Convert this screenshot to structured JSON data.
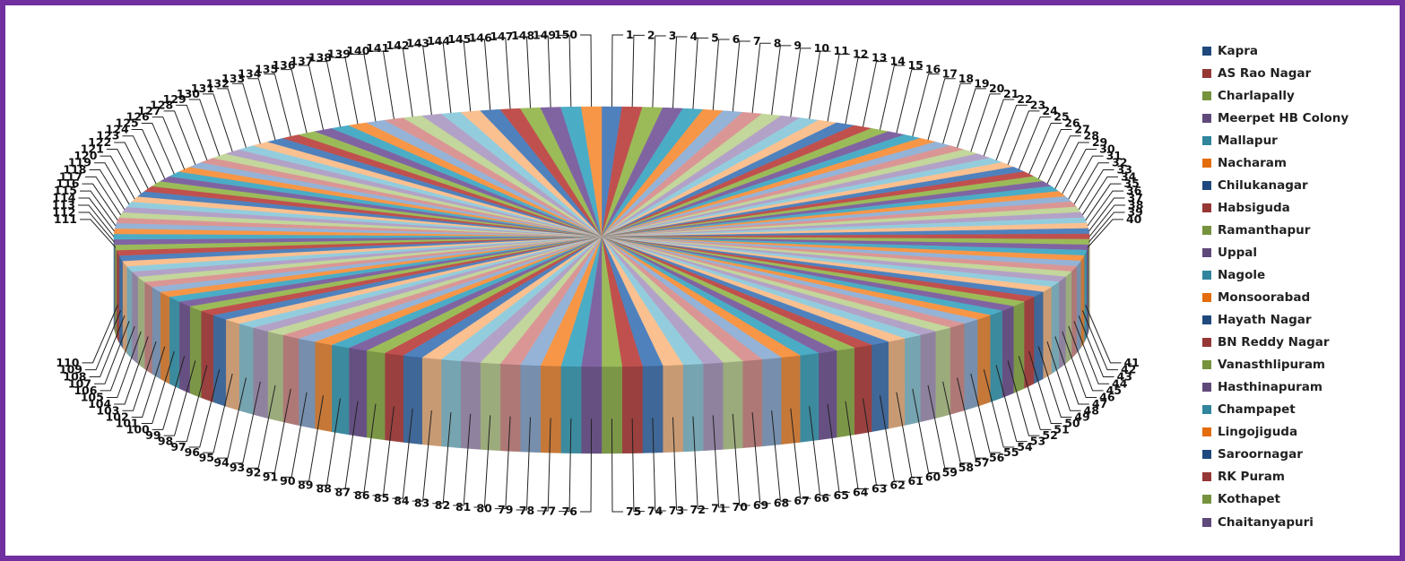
{
  "colors": {
    "frame": "#7030a0",
    "background": "#ffffff",
    "palette": [
      "#4f81bd",
      "#c0504d",
      "#9bbb59",
      "#8064a2",
      "#4bacc6",
      "#f79646",
      "#95b3d7",
      "#da9694",
      "#c3d69b",
      "#b3a2c7",
      "#93cddd",
      "#fac090"
    ],
    "legend_palette": [
      "#1f497d",
      "#953735",
      "#76923c",
      "#5f497a",
      "#31859c",
      "#e46c0a",
      "#1f497d",
      "#953735",
      "#76923c",
      "#5f497a",
      "#31859c",
      "#e46c0a",
      "#1f497d",
      "#953735",
      "#76923c",
      "#5f497a",
      "#31859c",
      "#e46c0a",
      "#1f497d",
      "#953735",
      "#76923c",
      "#5f497a"
    ]
  },
  "chart_data": {
    "type": "pie",
    "style": "3d exploded-free pie with leader-line labels",
    "slice_count": 150,
    "values": "150 equal slices (each ~0.667%)",
    "slice_labels": [
      "1",
      "2",
      "3",
      "4",
      "5",
      "6",
      "7",
      "8",
      "9",
      "10",
      "11",
      "12",
      "13",
      "14",
      "15",
      "16",
      "17",
      "18",
      "19",
      "20",
      "21",
      "22",
      "23",
      "24",
      "25",
      "26",
      "27",
      "28",
      "29",
      "30",
      "31",
      "32",
      "33",
      "34",
      "35",
      "36",
      "37",
      "38",
      "39",
      "40",
      "41",
      "42",
      "43",
      "44",
      "45",
      "46",
      "47",
      "48",
      "49",
      "50",
      "51",
      "52",
      "53",
      "54",
      "55",
      "56",
      "57",
      "58",
      "59",
      "60",
      "61",
      "62",
      "63",
      "64",
      "65",
      "66",
      "67",
      "68",
      "69",
      "70",
      "71",
      "72",
      "73",
      "74",
      "75",
      "76",
      "77",
      "78",
      "79",
      "80",
      "81",
      "82",
      "83",
      "84",
      "85",
      "86",
      "87",
      "88",
      "89",
      "90",
      "91",
      "92",
      "93",
      "94",
      "95",
      "96",
      "97",
      "98",
      "99",
      "100",
      "101",
      "102",
      "103",
      "104",
      "105",
      "106",
      "107",
      "108",
      "109",
      "110",
      "111",
      "112",
      "113",
      "114",
      "115",
      "116",
      "117",
      "118",
      "119",
      "120",
      "121",
      "122",
      "123",
      "124",
      "125",
      "126",
      "127",
      "128",
      "129",
      "130",
      "131",
      "132",
      "133",
      "134",
      "135",
      "136",
      "137",
      "138",
      "139",
      "140",
      "141",
      "142",
      "143",
      "144",
      "145",
      "146",
      "147",
      "148",
      "149",
      "150"
    ],
    "legend": {
      "placement": "right",
      "entries": [
        "Kapra",
        "AS Rao Nagar",
        "Charlapally",
        "Meerpet HB Colony",
        "Mallapur",
        "Nacharam",
        "Chilukanagar",
        "Habsiguda",
        "Ramanthapur",
        "Uppal",
        "Nagole",
        "Monsoorabad",
        "Hayath Nagar",
        "BN Reddy Nagar",
        "Vanasthlipuram",
        "Hasthinapuram",
        "Champapet",
        "Lingojiguda",
        "Saroornagar",
        "RK Puram",
        "Kothapet",
        "Chaitanyapuri"
      ]
    }
  }
}
